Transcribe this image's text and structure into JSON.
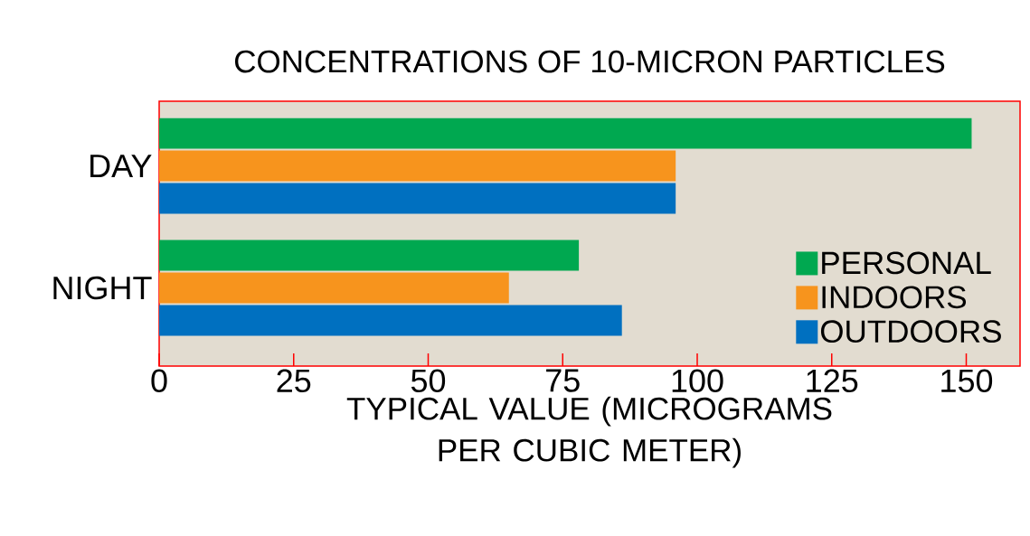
{
  "chart_data": {
    "type": "bar",
    "orientation": "horizontal",
    "title": "CONCENTRATIONS OF 10-MICRON PARTICLES",
    "xlabel": "TYPICAL VALUE (MICROGRAMS PER CUBIC METER)",
    "categories": [
      "DAY",
      "NIGHT"
    ],
    "series": [
      {
        "name": "PERSONAL",
        "color": "#00a850",
        "values": [
          151,
          78
        ]
      },
      {
        "name": "INDOORS",
        "color": "#f7941d",
        "values": [
          96,
          65
        ]
      },
      {
        "name": "OUTDOORS",
        "color": "#0070c0",
        "values": [
          96,
          86
        ]
      }
    ],
    "xlim": [
      0,
      160
    ],
    "xticks": [
      0,
      25,
      50,
      75,
      100,
      125,
      150
    ],
    "legend": "bottom right"
  }
}
